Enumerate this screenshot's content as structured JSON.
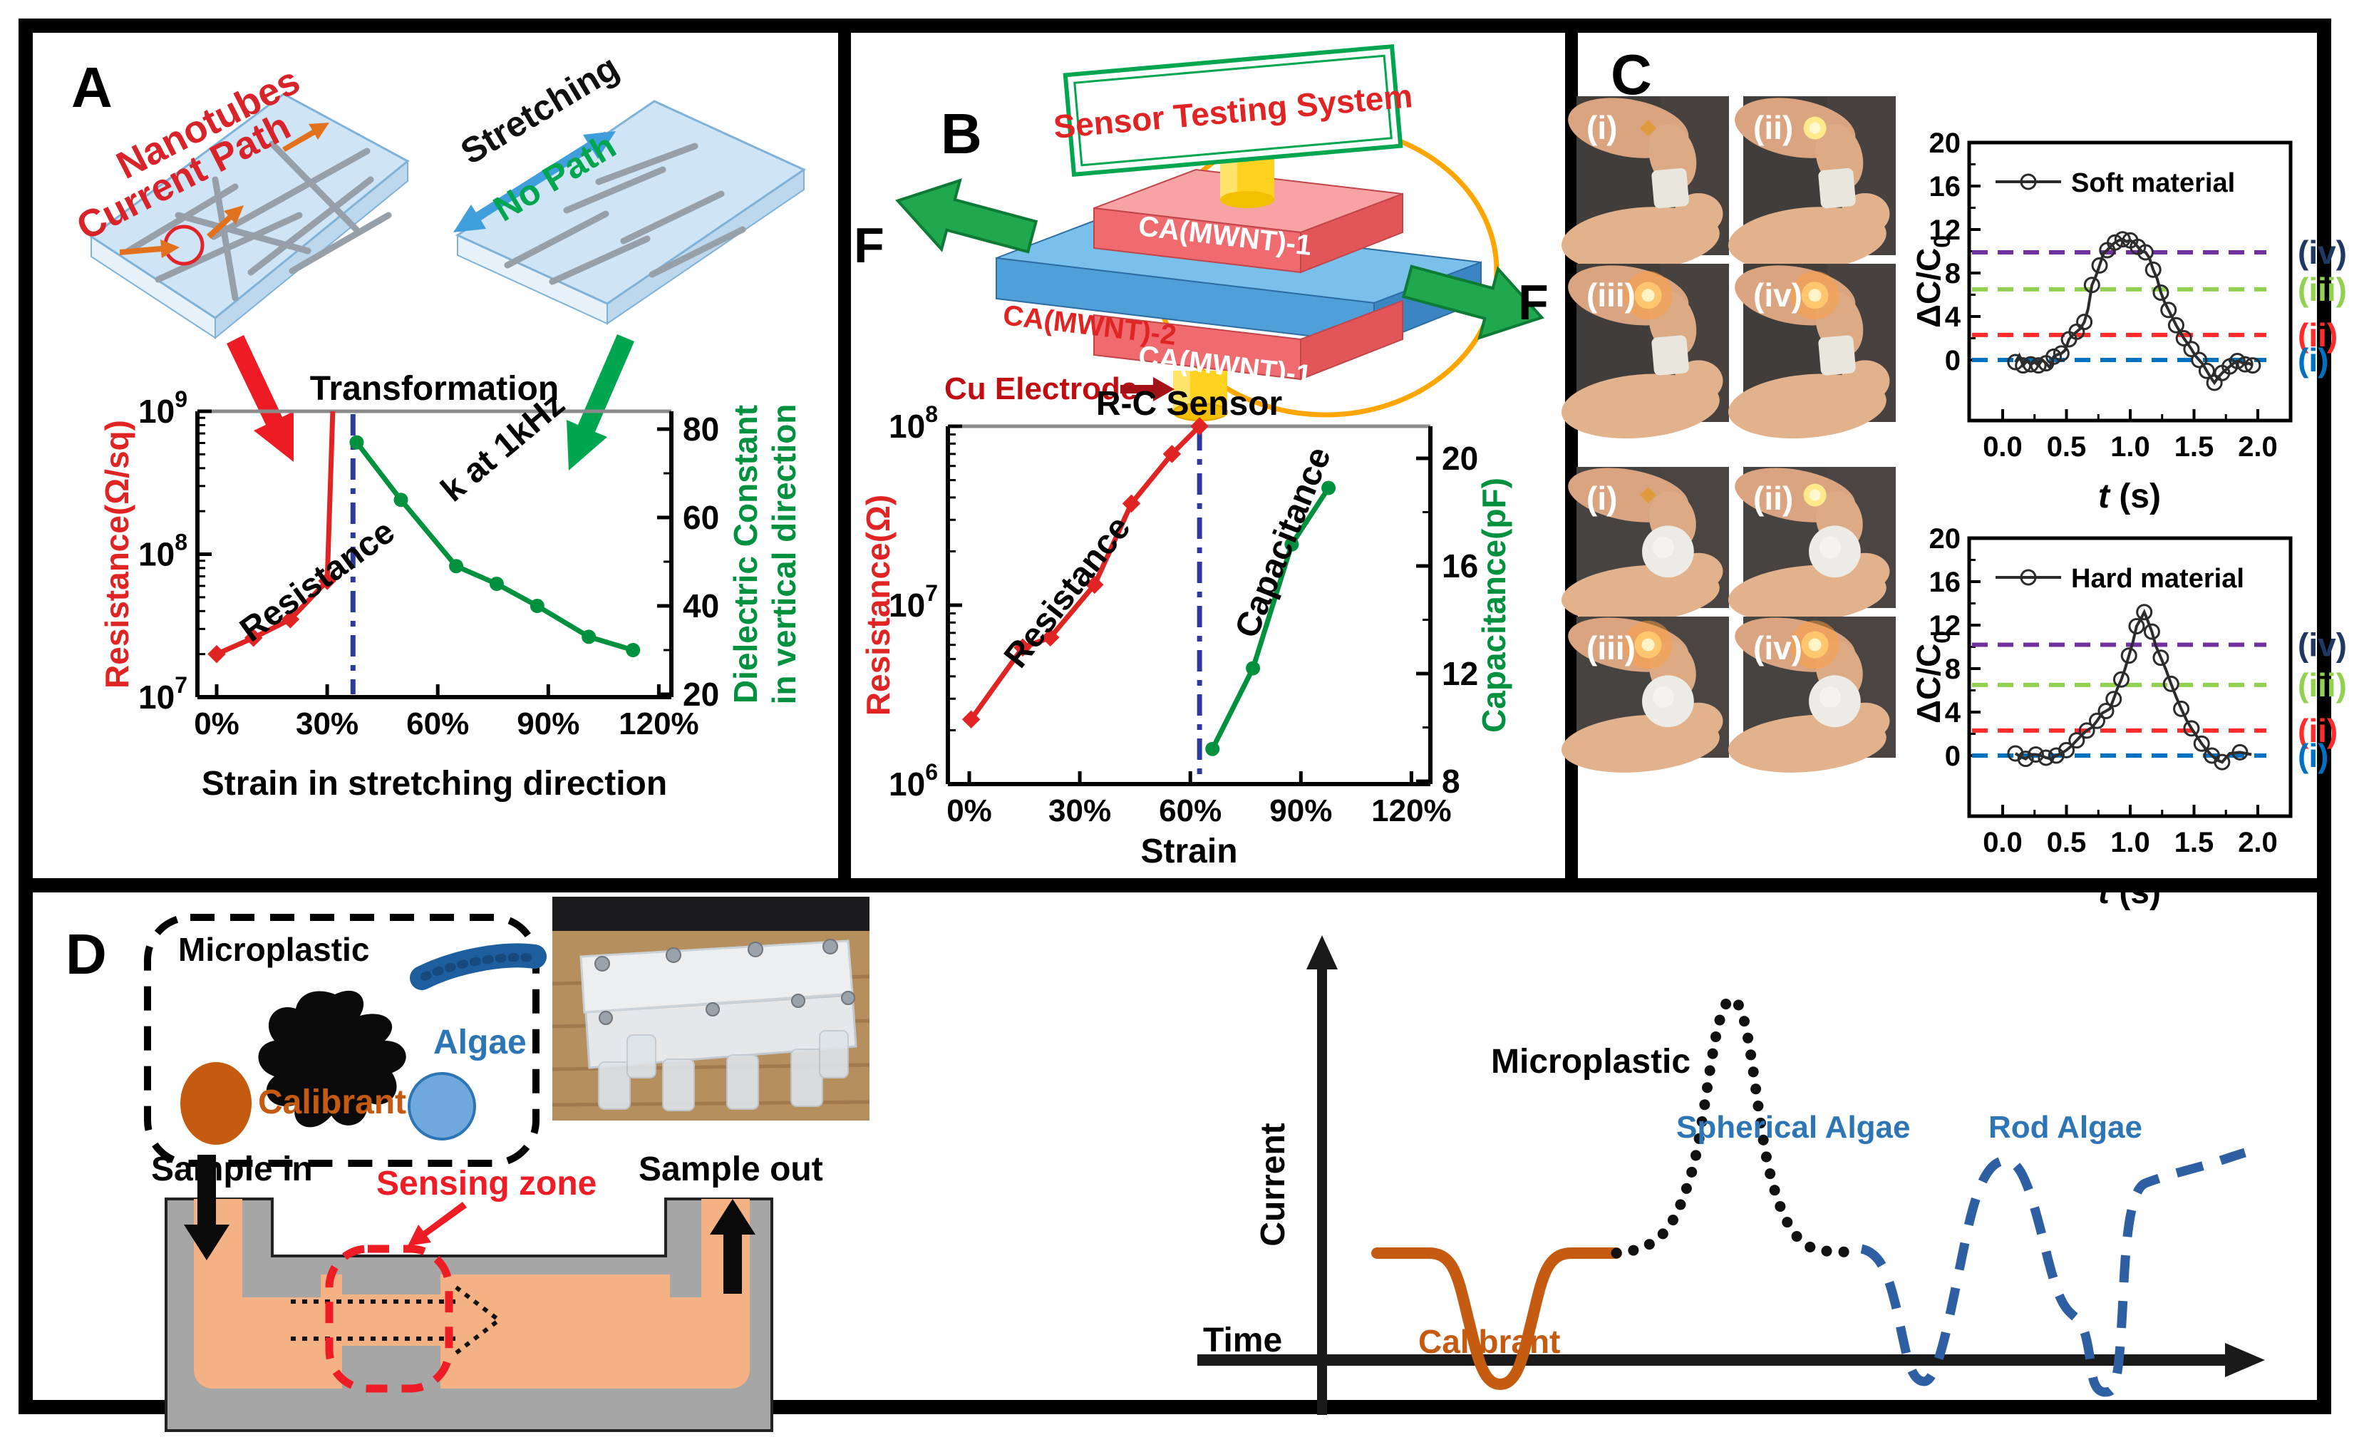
{
  "figure_bg": "#ffffff",
  "ui": {
    "panelA": {
      "label": "A",
      "nanotubes_line1": "Nanotubes",
      "nanotubes_line2": "Current Path",
      "stretching": "Stretching",
      "no_path": "No Path",
      "colors": {
        "annotation_red": "#d8232a",
        "no_path_green": "#00a64f",
        "stretch_arrow_blue": "#3f9fdc",
        "slab_fill": "#cfe4f5",
        "nanotube_gray": "#97a0a8"
      }
    },
    "panelB": {
      "label": "B",
      "testing_box": "Sensor Testing System",
      "layer_top": "CA(MWNT)-1",
      "layer_mid": "CA(MWNT)-2",
      "layer_bot": "CA(MWNT)-1",
      "cu_electrode": "Cu Electrode",
      "force_left": "F",
      "force_right": "F",
      "colors": {
        "box_border_green": "#00a64f",
        "box_text_red": "#e02424",
        "blue_slab": "#4f9fd9",
        "red_slab": "#ef6b70",
        "electrode_yellow": "#ffd21f",
        "wire_orange": "#ffa500",
        "force_green": "#1fa84d",
        "cu_dark_red": "#a31217"
      }
    },
    "panelC": {
      "label": "C",
      "photos_top": [
        "(i)",
        "(ii)",
        "(iii)",
        "(iv)"
      ],
      "photos_bottom": [
        "(i)",
        "(ii)",
        "(iii)",
        "(iv)"
      ]
    },
    "panelD": {
      "label": "D",
      "microplastic": "Microplastic",
      "algae": "Algae",
      "calibrant": "Calibrant",
      "sample_in": "Sample in",
      "sample_out": "Sample out",
      "sensing_zone": "Sensing zone",
      "colors": {
        "calibrant_orange": "#c55a11",
        "algae_blue": "#2e75b6",
        "algae_fill": "#6fa8dc",
        "channel_peach": "#f4b183",
        "body_gray": "#a6a6a6",
        "sensing_red": "#ee1c25"
      }
    }
  },
  "chart_data": [
    {
      "id": "transformation",
      "type": "line",
      "title": "Transformation",
      "xlabel": "Strain in stretching direction",
      "x_tick_labels": [
        "0%",
        "30%",
        "60%",
        "90%",
        "120%"
      ],
      "x_ticks_pct": [
        0,
        30,
        60,
        90,
        120
      ],
      "left_axis": {
        "label": "Resistance(Ω/sq)",
        "color": "#e02424",
        "log_ticks_exp": [
          9,
          8,
          7
        ]
      },
      "right_axis": {
        "label_line1": "Dielectric Constant",
        "label_line2": "in vertical direction",
        "color": "#00913e",
        "ticks": [
          80,
          60,
          40,
          20
        ]
      },
      "divider_pct": 37,
      "series": [
        {
          "name": "Resistance",
          "color": "#e02424",
          "marker": "diamond",
          "x_pct": [
            0,
            10,
            20,
            30,
            31.5
          ],
          "y": [
            20000000,
            26000000,
            35000000,
            65000000,
            1000000000
          ]
        },
        {
          "name": "k at 1kHz",
          "color": "#00913e",
          "marker": "circle",
          "x_pct": [
            38,
            50,
            65,
            76,
            87,
            101,
            113
          ],
          "y": [
            77,
            64,
            49,
            45,
            40,
            33,
            30
          ]
        }
      ]
    },
    {
      "id": "rc-sensor",
      "type": "line",
      "title": "R-C Sensor",
      "xlabel": "Strain",
      "x_tick_labels": [
        "0%",
        "30%",
        "60%",
        "90%",
        "120%"
      ],
      "x_ticks_pct": [
        0,
        30,
        60,
        90,
        120
      ],
      "left_axis": {
        "label": "Resistance(Ω)",
        "color": "#e02424",
        "log_ticks_exp": [
          8,
          7,
          6
        ]
      },
      "right_axis": {
        "label": "Capacitance(pF)",
        "color": "#00913e",
        "ticks": [
          20,
          16,
          12,
          8
        ]
      },
      "divider_pct": 62.5,
      "series": [
        {
          "name": "Resistance",
          "color": "#e02424",
          "marker": "diamond",
          "x_pct": [
            0.5,
            14.5,
            22,
            34,
            44,
            55,
            62.5
          ],
          "y": [
            2300000,
            5800000,
            6600000,
            13000000,
            37000000,
            70000000,
            100000000
          ]
        },
        {
          "name": "Capacitance",
          "color": "#00913e",
          "marker": "circle",
          "x_pct": [
            66,
            77,
            87.5,
            97.5
          ],
          "y": [
            9.2,
            12.2,
            16.8,
            18.9
          ]
        }
      ]
    },
    {
      "id": "soft",
      "type": "line",
      "legend": "Soft material",
      "ylabel": "ΔC/C0",
      "xlabel": "t (s)",
      "y_ticks": [
        0,
        4,
        8,
        12,
        16,
        20
      ],
      "x_tick_labels": [
        "0.0",
        "0.5",
        "1.0",
        "1.5",
        "2.0"
      ],
      "x_ticks": [
        0,
        0.5,
        1,
        1.5,
        2
      ],
      "ref_lines": [
        {
          "label": "(iv)",
          "value": 9.9,
          "color": "#7030a0",
          "label_color": "#1f3864"
        },
        {
          "label": "(iii)",
          "value": 6.5,
          "color": "#92d050",
          "label_color": "#92d050"
        },
        {
          "label": "(ii)",
          "value": 2.3,
          "color": "#ff2a2a",
          "label_color": "#ff2a2a"
        },
        {
          "label": "(i)",
          "value": 0,
          "color": "#0070c0",
          "label_color": "#0070c0"
        }
      ],
      "t": [
        0.1,
        0.13,
        0.16,
        0.19,
        0.22,
        0.25,
        0.28,
        0.31,
        0.34,
        0.37,
        0.4,
        0.43,
        0.46,
        0.49,
        0.52,
        0.55,
        0.58,
        0.61,
        0.64,
        0.67,
        0.7,
        0.73,
        0.76,
        0.79,
        0.82,
        0.85,
        0.88,
        0.91,
        0.94,
        0.97,
        1.0,
        1.03,
        1.06,
        1.09,
        1.12,
        1.15,
        1.18,
        1.21,
        1.24,
        1.27,
        1.3,
        1.33,
        1.36,
        1.39,
        1.42,
        1.45,
        1.48,
        1.51,
        1.54,
        1.57,
        1.6,
        1.63,
        1.66,
        1.69,
        1.72,
        1.75,
        1.78,
        1.81,
        1.84,
        1.87,
        1.9,
        1.93,
        1.96
      ],
      "v": [
        -0.2,
        0.4,
        -0.5,
        -0.1,
        -0.4,
        -0.2,
        -0.5,
        0.0,
        -0.3,
        -0.7,
        0.3,
        0.5,
        0.6,
        0.9,
        1.9,
        2.3,
        2.6,
        2.9,
        3.5,
        4.7,
        6.9,
        7.7,
        8.7,
        9.8,
        10.1,
        10.5,
        10.8,
        11.0,
        11.1,
        10.9,
        11.0,
        10.8,
        10.4,
        10.0,
        9.9,
        9.4,
        8.3,
        7.5,
        6.2,
        5.3,
        4.6,
        3.9,
        3.2,
        2.6,
        2.0,
        1.5,
        1.0,
        0.4,
        0.0,
        -0.4,
        -1.0,
        -1.6,
        -2.1,
        -1.6,
        -1.2,
        -0.9,
        -0.6,
        -0.3,
        -0.1,
        -0.2,
        -0.4,
        -0.3,
        -0.5
      ]
    },
    {
      "id": "hard",
      "type": "line",
      "legend": "Hard material",
      "ylabel": "ΔC/C0",
      "xlabel": "t (s)",
      "y_ticks": [
        0,
        4,
        8,
        12,
        16,
        20
      ],
      "x_tick_labels": [
        "0.0",
        "0.5",
        "1.0",
        "1.5",
        "2.0"
      ],
      "x_ticks": [
        0,
        0.5,
        1,
        1.5,
        2
      ],
      "ref_lines": [
        {
          "label": "(iv)",
          "value": 10.2,
          "color": "#7030a0",
          "label_color": "#1f3864"
        },
        {
          "label": "(iii)",
          "value": 6.5,
          "color": "#92d050",
          "label_color": "#92d050"
        },
        {
          "label": "(ii)",
          "value": 2.3,
          "color": "#ff2a2a",
          "label_color": "#ff2a2a"
        },
        {
          "label": "(i)",
          "value": 0,
          "color": "#0070c0",
          "label_color": "#0070c0"
        }
      ],
      "t": [
        0.1,
        0.14,
        0.18,
        0.22,
        0.26,
        0.3,
        0.34,
        0.38,
        0.42,
        0.46,
        0.5,
        0.54,
        0.58,
        0.62,
        0.66,
        0.7,
        0.74,
        0.78,
        0.81,
        0.84,
        0.87,
        0.9,
        0.93,
        0.96,
        0.99,
        1.02,
        1.05,
        1.08,
        1.11,
        1.14,
        1.17,
        1.2,
        1.24,
        1.28,
        1.32,
        1.36,
        1.4,
        1.44,
        1.48,
        1.52,
        1.56,
        1.6,
        1.64,
        1.68,
        1.72,
        1.78,
        1.86,
        1.95
      ],
      "v": [
        0.2,
        -0.1,
        -0.3,
        0.1,
        0.1,
        0.0,
        -0.2,
        -0.3,
        0.0,
        0.2,
        0.5,
        0.9,
        1.4,
        1.9,
        2.3,
        2.6,
        3.2,
        3.9,
        4.1,
        4.3,
        5.2,
        6.2,
        7.0,
        8.0,
        9.2,
        10.4,
        11.9,
        12.5,
        13.2,
        12.3,
        11.4,
        10.1,
        9.0,
        7.9,
        6.6,
        5.4,
        4.3,
        3.3,
        2.5,
        1.8,
        1.1,
        0.5,
        0.0,
        -0.4,
        -0.6,
        0.2,
        0.3,
        0.1
      ]
    },
    {
      "id": "flow-schematic",
      "type": "schematic",
      "xlabel": "Time",
      "ylabel": "Current",
      "curves": [
        {
          "name": "Calibrant",
          "color": "#c55a11",
          "style": "solid",
          "shape": "downward dip"
        },
        {
          "name": "Microplastic",
          "color": "#111111",
          "style": "dotted",
          "shape": "upward peak"
        },
        {
          "name": "Spherical Algae",
          "color": "#2e5fa3",
          "style": "dashed",
          "shape": "broad dip with overshoot hump"
        },
        {
          "name": "Rod Algae",
          "color": "#2e5fa3",
          "style": "dashed",
          "shape": "narrow deep dip then recovery"
        }
      ]
    }
  ]
}
